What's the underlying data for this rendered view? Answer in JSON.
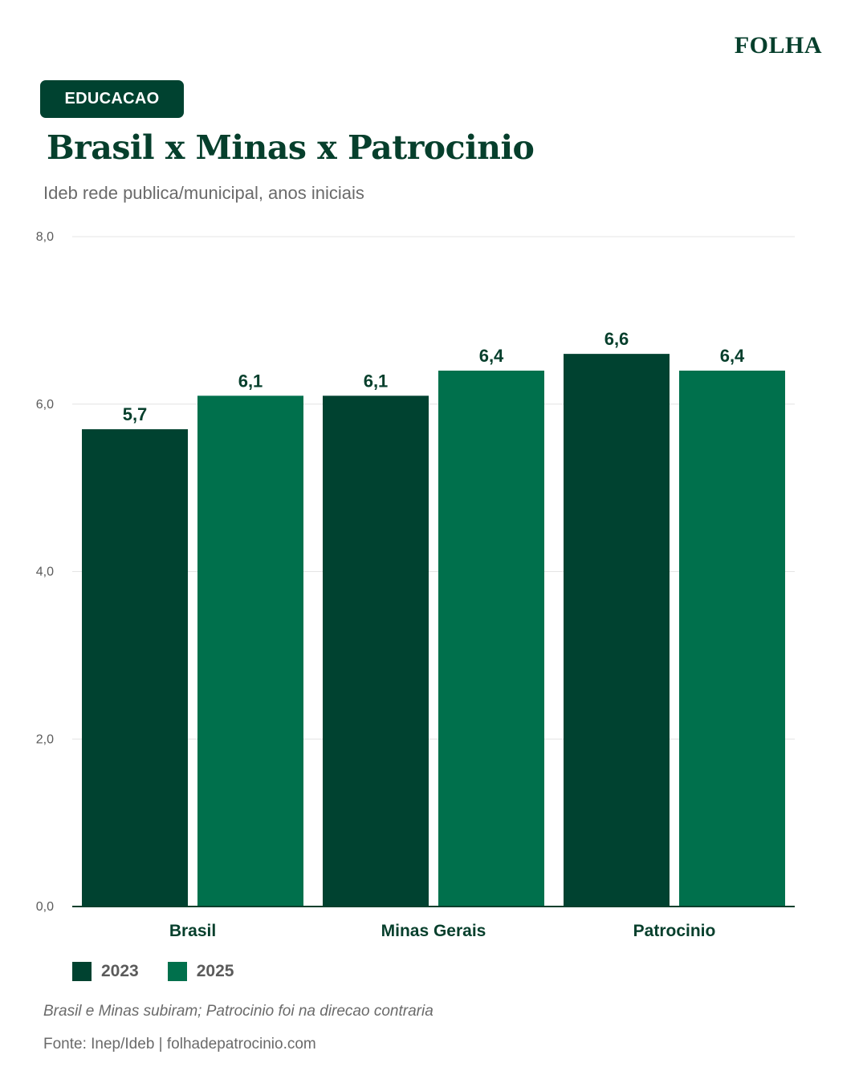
{
  "brand": "FOLHA",
  "tag": "EDUCACAO",
  "title": "Brasil x Minas x Patrocinio",
  "subtitle": "Ideb rede publica/municipal, anos iniciais",
  "colors": {
    "dark_green": "#004230",
    "green": "#00704c",
    "title_green": "#063f2c"
  },
  "chart_data": {
    "type": "bar",
    "categories": [
      "Brasil",
      "Minas Gerais",
      "Patrocinio"
    ],
    "series": [
      {
        "name": "2023",
        "values": [
          5.7,
          6.1,
          6.6
        ],
        "labels": [
          "5,7",
          "6,1",
          "6,6"
        ],
        "color": "#004230"
      },
      {
        "name": "2025",
        "values": [
          6.1,
          6.4,
          6.4
        ],
        "labels": [
          "6,1",
          "6,4",
          "6,4"
        ],
        "color": "#00704c"
      }
    ],
    "ylim": [
      0,
      8
    ],
    "yticks": [
      0,
      2,
      4,
      6,
      8
    ],
    "ytick_labels": [
      "0,0",
      "2,0",
      "4,0",
      "6,0",
      "8,0"
    ],
    "grid": true,
    "legend": "bottom-left"
  },
  "legend": [
    {
      "label": "2023",
      "color": "#004230"
    },
    {
      "label": "2025",
      "color": "#00704c"
    }
  ],
  "note": "Brasil e Minas subiram; Patrocinio foi na direcao contraria",
  "source": "Fonte: Inep/Ideb  |  folhadepatrocinio.com"
}
